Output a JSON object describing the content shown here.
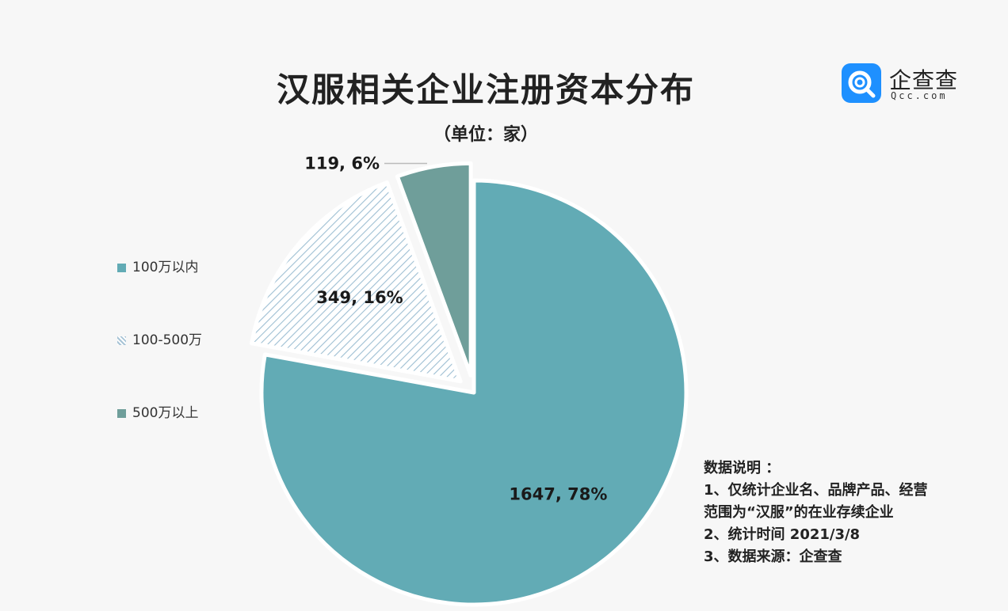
{
  "title": "汉服相关企业注册资本分布",
  "subtitle": "（单位：家）",
  "logo": {
    "name": "企查查",
    "domain": "Qcc.com",
    "color": "#1e90ff"
  },
  "legend": [
    {
      "label": "100万以内",
      "style": "solid",
      "color": "#62abb5"
    },
    {
      "label": "100-500万",
      "style": "hatched",
      "color": "#a8c4d6"
    },
    {
      "label": "500万以上",
      "style": "solid",
      "color": "#6f9e9a"
    }
  ],
  "chart_data": {
    "type": "pie",
    "title": "汉服相关企业注册资本分布",
    "subtitle": "（单位：家）",
    "categories": [
      "100万以内",
      "100-500万",
      "500万以上"
    ],
    "values": [
      1647,
      349,
      119
    ],
    "percents": [
      78,
      16,
      6
    ],
    "data_labels": [
      "1647, 78%",
      "349, 16%",
      "119, 6%"
    ],
    "colors": [
      "#62abb5",
      "#a8c4d6",
      "#6f9e9a"
    ],
    "start_angle_deg": 0,
    "direction": "clockwise",
    "exploded": [
      false,
      true,
      true
    ],
    "legend_position": "left"
  },
  "notes": {
    "heading": "数据说明 ：",
    "lines": [
      "1、仅统计企业名、品牌产品、经营",
      "范围为“汉服”的在业存续企业",
      "2、统计时间 2021/3/8",
      "3、数据来源：企查查"
    ]
  }
}
